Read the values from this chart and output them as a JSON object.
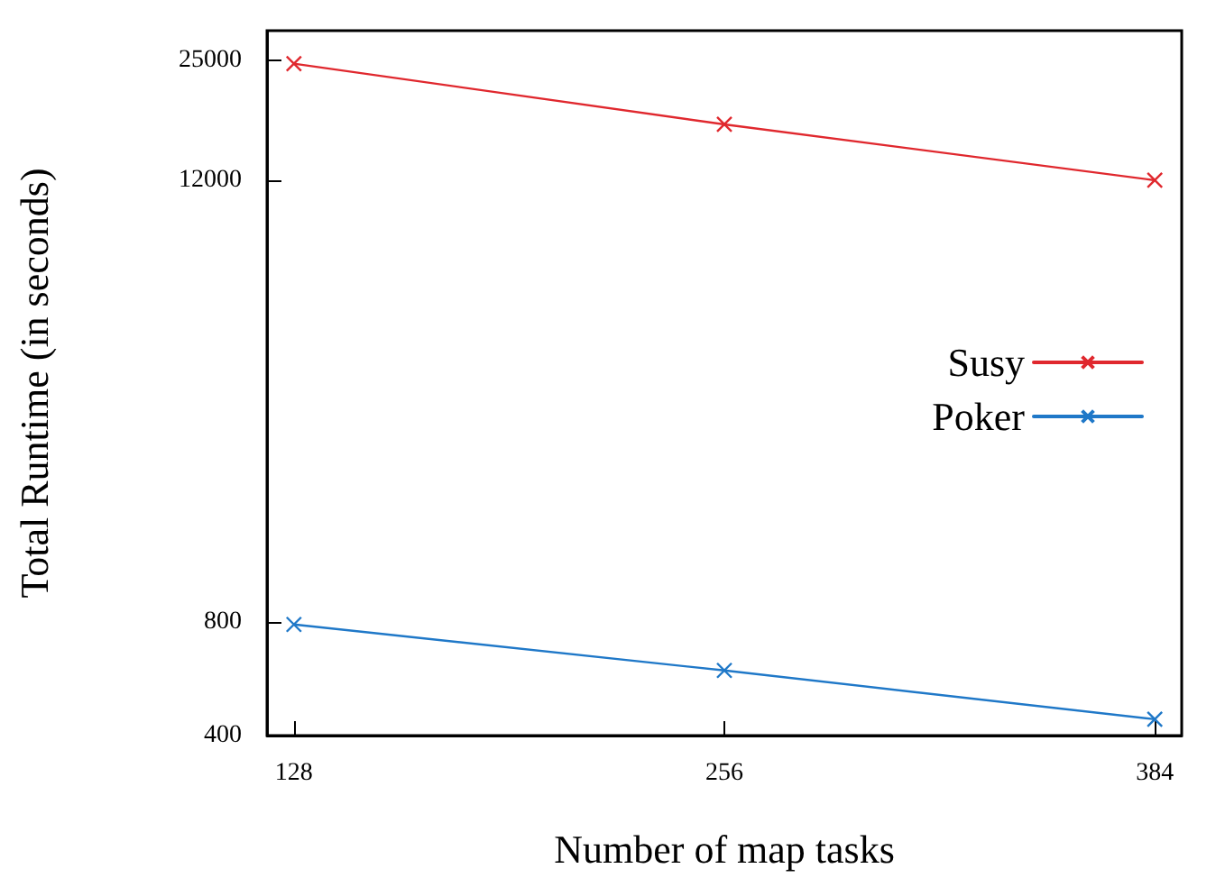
{
  "chart_data": {
    "type": "line",
    "xlabel": "Number of map tasks",
    "ylabel": "Total Runtime (in seconds)",
    "x": [
      128,
      256,
      384
    ],
    "series": [
      {
        "name": "Susy",
        "color": "#e0282e",
        "values": [
          24500,
          16900,
          12000
        ]
      },
      {
        "name": "Poker",
        "color": "#1f78c8",
        "values": [
          790,
          596,
          442
        ]
      }
    ],
    "xlim": [
      120,
      392
    ],
    "xticks": [
      128,
      256,
      384
    ],
    "ylim": [
      400,
      30000
    ],
    "yticks": [
      400,
      800,
      12000,
      25000
    ],
    "log": true,
    "grid": false,
    "legend": "right",
    "marker": "cross",
    "line_style": "solid"
  }
}
